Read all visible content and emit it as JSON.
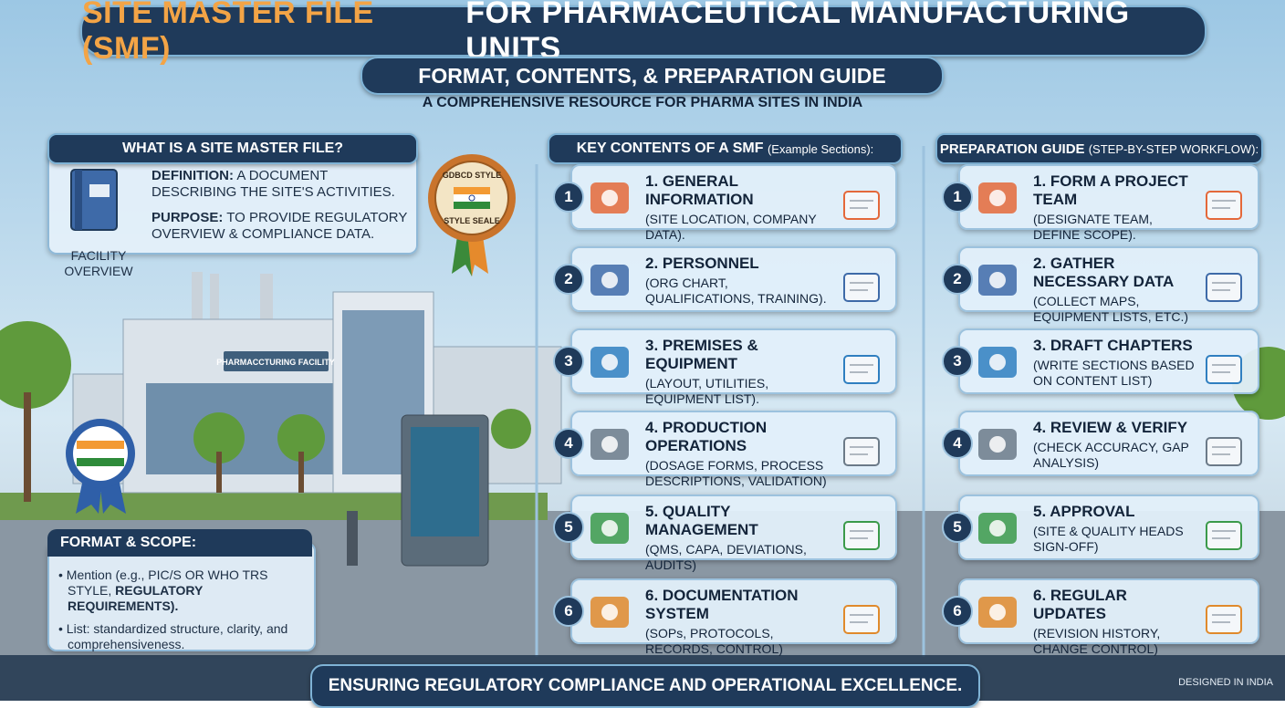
{
  "header": {
    "title_lead": "SITE MASTER FILE (SMF)",
    "title_rest": "FOR PHARMACEUTICAL MANUFACTURING UNITS",
    "subtitle": "FORMAT, CONTENTS, & PREPARATION GUIDE",
    "tagline": "A COMPREHENSIVE RESOURCE FOR PHARMA SITES IN INDIA"
  },
  "what_is": {
    "heading": "WHAT IS A SITE MASTER FILE?",
    "icon_label": "FACILITY OVERVIEW",
    "items": [
      {
        "label": "DEFINITION:",
        "text": "A DOCUMENT DESCRIBING THE SITE'S ACTIVITIES."
      },
      {
        "label": "PURPOSE:",
        "text": "TO PROVIDE REGULATORY OVERVIEW & COMPLIANCE DATA."
      }
    ]
  },
  "seal": {
    "top": "GDBCD STYLE",
    "bottom": "STYLE SEALE"
  },
  "building_sign": "PHARMACCTURING FACILITY",
  "format_scope": {
    "heading": "FORMAT & SCOPE:",
    "items": [
      {
        "text": "Mention (e.g., PIC/S OR WHO TRS STYLE,",
        "bold": "REGULATORY REQUIREMENTS)."
      },
      {
        "text": "List: standardized structure, clarity, and comprehensiveness.",
        "bold": null
      }
    ]
  },
  "key_contents": {
    "heading": "KEY CONTENTS OF A SMF",
    "note": "(Example Sections):",
    "sections": [
      {
        "number": "1",
        "title": "1. GENERAL INFORMATION",
        "detail": "(SITE LOCATION, COMPANY DATA)."
      },
      {
        "number": "2",
        "title": "2. PERSONNEL",
        "detail": "(ORG CHART, QUALIFICATIONS, TRAINING)."
      },
      {
        "number": "3",
        "title": "3. PREMISES & EQUIPMENT",
        "detail": "(LAYOUT, UTILITIES, EQUIPMENT LIST)."
      },
      {
        "number": "4",
        "title": "4. PRODUCTION OPERATIONS",
        "detail": "(DOSAGE FORMS, PROCESS DESCRIPTIONS, VALIDATION)"
      },
      {
        "number": "5",
        "title": "5. QUALITY MANAGEMENT",
        "detail": "(QMS, CAPA, DEVIATIONS, AUDITS)"
      },
      {
        "number": "6",
        "title": "6. DOCUMENTATION SYSTEM",
        "detail": "(SOPs, PROTOCOLS, RECORDS, CONTROL)"
      }
    ]
  },
  "preparation": {
    "heading": "PREPARATION GUIDE",
    "note": "(STEP-BY-STEP WORKFLOW):",
    "steps": [
      {
        "number": "1",
        "title": "1. FORM A PROJECT TEAM",
        "detail": "(DESIGNATE TEAM, DEFINE SCOPE)."
      },
      {
        "number": "2",
        "title": "2. GATHER NECESSARY DATA",
        "detail": "(COLLECT MAPS, EQUIPMENT LISTS, ETC.)"
      },
      {
        "number": "3",
        "title": "3. DRAFT CHAPTERS",
        "detail": "(WRITE SECTIONS BASED ON CONTENT LIST)"
      },
      {
        "number": "4",
        "title": "4. REVIEW & VERIFY",
        "detail": "(CHECK ACCURACY, GAP ANALYSIS)"
      },
      {
        "number": "5",
        "title": "5. APPROVAL",
        "detail": "(SITE & QUALITY HEADS SIGN-OFF)"
      },
      {
        "number": "6",
        "title": "6. REGULAR UPDATES",
        "detail": "(REVISION HISTORY, CHANGE CONTROL)"
      }
    ]
  },
  "footer": {
    "slogan": "ENSURING REGULATORY COMPLIANCE AND OPERATIONAL EXCELLENCE.",
    "credit": "DESIGNED IN INDIA"
  }
}
